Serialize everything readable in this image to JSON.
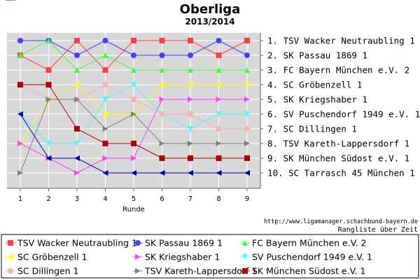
{
  "chart_data": {
    "type": "line",
    "title": "Oberliga",
    "subtitle": "2013/2014",
    "xlabel": "Runde",
    "ylabel": "",
    "x": [
      1,
      2,
      3,
      4,
      5,
      6,
      7,
      8,
      9
    ],
    "ylim": [
      10,
      1
    ],
    "grid": true,
    "legend_position": "bottom",
    "ranking_labels": [
      "1. TSV Wacker Neutraubling 1",
      "2. SK Passau 1869 1",
      "3. FC Bayern München e.V. 2",
      "4. SC Gröbenzell 1",
      "5. SK Kriegshaber 1",
      "6. SV Puschendorf 1949 e.V. 1",
      "7. SC Dillingen 1",
      "8. TSV Kareth-Lappersdorf 1",
      "9. SK München Südost e.V. 1",
      "10. SC Tarrasch 45 München 1"
    ],
    "series": [
      {
        "name": "TSV Wacker Neutraubling 1",
        "color": "#ff4040",
        "marker": "square",
        "values": [
          2,
          3,
          1,
          3,
          1,
          1,
          1,
          2,
          1
        ]
      },
      {
        "name": "SK Passau 1869 1",
        "color": "#4040ff",
        "marker": "circle",
        "values": [
          1,
          1,
          2,
          1,
          2,
          2,
          2,
          1,
          2
        ]
      },
      {
        "name": "FC Bayern München e.V. 2",
        "color": "#40ff40",
        "marker": "triangle-up",
        "values": [
          2,
          1,
          3,
          2,
          3,
          3,
          3,
          3,
          3
        ]
      },
      {
        "name": "SC Gröbenzell 1",
        "color": "#ffff00",
        "marker": "triangle-left",
        "values": [
          8,
          5,
          4,
          6,
          6,
          4,
          4,
          4,
          4
        ]
      },
      {
        "name": "SK Kriegshaber 1",
        "color": "#ff40ff",
        "marker": "triangle-right",
        "values": [
          8,
          9,
          10,
          9,
          9,
          5,
          5,
          5,
          5
        ]
      },
      {
        "name": "SV Puschendorf 1949 e.V. 1",
        "color": "#40ffff",
        "marker": "triangle-down",
        "values": [
          6,
          8,
          8,
          5,
          4,
          6,
          7,
          6,
          6
        ]
      },
      {
        "name": "SC Dillingen 1",
        "color": "#ffb0b0",
        "marker": "circle",
        "values": [
          4,
          5,
          5,
          4,
          5,
          6,
          6,
          7,
          7
        ]
      },
      {
        "name": "TSV Kareth-Lappersdorf 1",
        "color": "#808080",
        "marker": "triangle-right",
        "values": [
          10,
          5,
          5,
          7,
          6,
          8,
          8,
          8,
          8
        ]
      },
      {
        "name": "SK München Südost e.V. 1",
        "color": "#b00000",
        "marker": "square",
        "values": [
          4,
          4,
          7,
          8,
          8,
          9,
          9,
          9,
          9
        ]
      },
      {
        "name": "SC Tarrasch 45 München 1",
        "color": "#0000b0",
        "marker": "triangle-left",
        "values": [
          6,
          9,
          9,
          10,
          10,
          10,
          10,
          10,
          10
        ]
      }
    ]
  },
  "footer": {
    "url": "http://www.ligamanager.schachbund-bayern.de",
    "caption": "Rangliste über Zeit"
  }
}
